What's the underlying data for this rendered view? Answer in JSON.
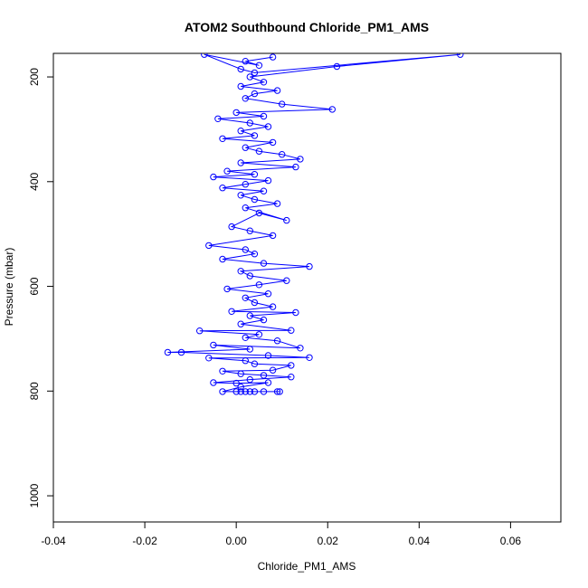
{
  "chart_data": {
    "type": "scatter",
    "title": "ATOM2 Southbound Chloride_PM1_AMS",
    "xlabel": "Chloride_PM1_AMS",
    "ylabel": "Pressure (mbar)",
    "xlim": [
      -0.04,
      0.071
    ],
    "ylim": [
      1050,
      155
    ],
    "y_reversed": true,
    "grid": false,
    "legend": "none",
    "x_ticks": [
      -0.04,
      -0.02,
      0.0,
      0.02,
      0.04,
      0.06
    ],
    "x_tick_labels": [
      "-0.04",
      "-0.02",
      "0.00",
      "0.02",
      "0.04",
      "0.06"
    ],
    "y_ticks": [
      200,
      400,
      600,
      800,
      1000
    ],
    "y_tick_labels": [
      "200",
      "400",
      "600",
      "800",
      "1000"
    ],
    "series": [
      {
        "color": "#0000ff",
        "marker": "open-circle",
        "line": true,
        "points": [
          [
            0.008,
            162
          ],
          [
            0.002,
            170
          ],
          [
            0.005,
            178
          ],
          [
            -0.007,
            157
          ],
          [
            0.001,
            185
          ],
          [
            0.004,
            192
          ],
          [
            0.049,
            157
          ],
          [
            0.022,
            180
          ],
          [
            0.003,
            200
          ],
          [
            0.006,
            210
          ],
          [
            0.001,
            218
          ],
          [
            0.009,
            226
          ],
          [
            0.004,
            232
          ],
          [
            0.002,
            241
          ],
          [
            0.01,
            252
          ],
          [
            0.021,
            262
          ],
          [
            0.0,
            268
          ],
          [
            0.006,
            275
          ],
          [
            -0.004,
            280
          ],
          [
            0.003,
            288
          ],
          [
            0.007,
            295
          ],
          [
            0.001,
            303
          ],
          [
            0.004,
            312
          ],
          [
            -0.003,
            318
          ],
          [
            0.008,
            325
          ],
          [
            0.002,
            335
          ],
          [
            0.005,
            342
          ],
          [
            0.01,
            348
          ],
          [
            0.014,
            357
          ],
          [
            0.001,
            364
          ],
          [
            0.013,
            372
          ],
          [
            -0.002,
            380
          ],
          [
            0.004,
            386
          ],
          [
            -0.005,
            391
          ],
          [
            0.007,
            398
          ],
          [
            0.002,
            405
          ],
          [
            -0.003,
            412
          ],
          [
            0.006,
            418
          ],
          [
            0.001,
            426
          ],
          [
            0.004,
            434
          ],
          [
            0.009,
            442
          ],
          [
            0.002,
            450
          ],
          [
            0.011,
            474
          ],
          [
            0.005,
            460
          ],
          [
            -0.001,
            486
          ],
          [
            0.003,
            494
          ],
          [
            0.008,
            503
          ],
          [
            -0.006,
            522
          ],
          [
            0.002,
            530
          ],
          [
            0.004,
            538
          ],
          [
            -0.003,
            548
          ],
          [
            0.006,
            556
          ],
          [
            0.016,
            562
          ],
          [
            0.001,
            571
          ],
          [
            0.003,
            580
          ],
          [
            0.011,
            589
          ],
          [
            0.005,
            597
          ],
          [
            -0.002,
            605
          ],
          [
            0.007,
            614
          ],
          [
            0.002,
            622
          ],
          [
            0.004,
            631
          ],
          [
            0.008,
            639
          ],
          [
            -0.001,
            648
          ],
          [
            0.013,
            650
          ],
          [
            0.003,
            656
          ],
          [
            0.006,
            664
          ],
          [
            0.001,
            672
          ],
          [
            0.012,
            684
          ],
          [
            -0.008,
            685
          ],
          [
            0.005,
            692
          ],
          [
            0.002,
            698
          ],
          [
            0.009,
            704
          ],
          [
            0.014,
            718
          ],
          [
            -0.005,
            712
          ],
          [
            0.003,
            720
          ],
          [
            -0.015,
            726
          ],
          [
            -0.012,
            726
          ],
          [
            0.007,
            732
          ],
          [
            0.016,
            736
          ],
          [
            -0.006,
            737
          ],
          [
            0.002,
            742
          ],
          [
            0.004,
            748
          ],
          [
            0.012,
            751
          ],
          [
            0.008,
            760
          ],
          [
            -0.003,
            762
          ],
          [
            0.001,
            767
          ],
          [
            0.006,
            770
          ],
          [
            0.012,
            773
          ],
          [
            0.003,
            778
          ],
          [
            -0.005,
            784
          ],
          [
            0.0,
            785
          ],
          [
            0.007,
            784
          ],
          [
            0.001,
            792
          ],
          [
            -0.003,
            801
          ],
          [
            0.0,
            801
          ],
          [
            0.002,
            801
          ],
          [
            0.004,
            801
          ],
          [
            0.006,
            801
          ],
          [
            0.009,
            801
          ],
          [
            0.0095,
            801
          ],
          [
            0.001,
            801
          ],
          [
            0.003,
            801
          ]
        ]
      }
    ]
  }
}
